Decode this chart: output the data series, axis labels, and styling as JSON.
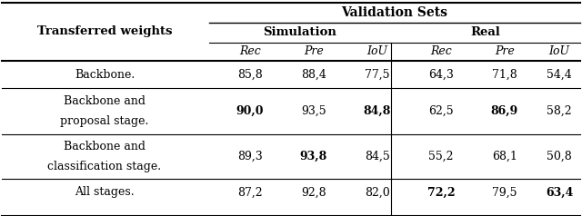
{
  "title": "Validation Sets",
  "col_header_1": "Transferred weights",
  "col_header_sim": "Simulation",
  "col_header_real": "Real",
  "sub_headers": [
    "Rec",
    "Pre",
    "IoU",
    "Rec",
    "Pre",
    "IoU"
  ],
  "rows": [
    {
      "label": [
        "Backbone."
      ],
      "values": [
        "85,8",
        "88,4",
        "77,5",
        "64,3",
        "71,8",
        "54,4"
      ],
      "bold": [
        false,
        false,
        false,
        false,
        false,
        false
      ]
    },
    {
      "label": [
        "Backbone and",
        "proposal stage."
      ],
      "values": [
        "90,0",
        "93,5",
        "84,8",
        "62,5",
        "86,9",
        "58,2"
      ],
      "bold": [
        true,
        false,
        true,
        false,
        true,
        false
      ]
    },
    {
      "label": [
        "Backbone and",
        "classification stage."
      ],
      "values": [
        "89,3",
        "93,8",
        "84,5",
        "55,2",
        "68,1",
        "50,8"
      ],
      "bold": [
        false,
        true,
        false,
        false,
        false,
        false
      ]
    },
    {
      "label": [
        "All stages."
      ],
      "values": [
        "87,2",
        "92,8",
        "82,0",
        "72,2",
        "79,5",
        "63,4"
      ],
      "bold": [
        false,
        false,
        false,
        true,
        false,
        true
      ]
    }
  ],
  "figsize": [
    6.4,
    2.38
  ],
  "dpi": 100,
  "bg_color": "#ffffff",
  "text_color": "#000000"
}
